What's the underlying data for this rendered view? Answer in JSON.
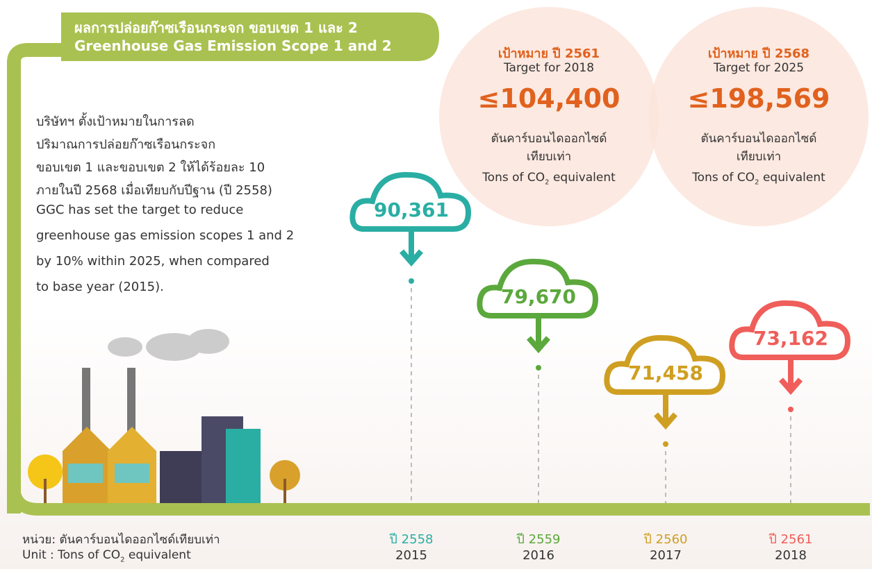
{
  "header": {
    "title_th": "ผลการปล่อยก๊าซเรือนกระจก ขอบเขต 1 และ 2",
    "title_en": "Greenhouse Gas  Emission Scope 1 and 2"
  },
  "description": {
    "th": [
      "บริษัทฯ ตั้งเป้าหมายในการลด",
      "ปริมาณการปล่อยก๊าซเรือนกระจก",
      "ขอบเขต 1 และขอบเขต 2 ให้ได้ร้อยละ 10",
      "ภายในปี 2568 เมื่อเทียบกับปีฐาน (ปี 2558)"
    ],
    "en": [
      "GGC has set the target to reduce",
      "greenhouse gas emission scopes 1 and 2",
      "by 10% within 2025, when compared",
      "to base year (2015)."
    ]
  },
  "targets": [
    {
      "label_th": "เป้าหมาย ปี 2561",
      "label_en": "Target for 2018",
      "value": "≤104,400",
      "unit_th": [
        "ตันคาร์บอนไดออกไซด์",
        "เทียบเท่า"
      ],
      "unit_en": "Tons of CO",
      "unit_sub": "2",
      "unit_en_post": " equivalent"
    },
    {
      "label_th": "เป้าหมาย ปี 2568",
      "label_en": "Target for 2025",
      "value": "≤198,569",
      "unit_th": [
        "ตันคาร์บอนไดออกไซด์",
        "เทียบเท่า"
      ],
      "unit_en": "Tons of CO",
      "unit_sub": "2",
      "unit_en_post": " equivalent"
    }
  ],
  "years": [
    {
      "value": "90,361",
      "year_th": "ปี 2558",
      "year_en": "2015",
      "color": "#2aaea4"
    },
    {
      "value": "79,670",
      "year_th": "ปี 2559",
      "year_en": "2016",
      "color": "#5ba83c"
    },
    {
      "value": "71,458",
      "year_th": "ปี 2560",
      "year_en": "2017",
      "color": "#cf9f22"
    },
    {
      "value": "73,162",
      "year_th": "ปี 2561",
      "year_en": "2018",
      "color": "#ef5e5a"
    }
  ],
  "unit": {
    "label_th": "หน่วย: ตันคาร์บอนไดออกไซด์เทียบเท่า",
    "label_en": "Unit   : Tons of CO",
    "sub": "2",
    "label_en_post": " equivalent"
  }
}
